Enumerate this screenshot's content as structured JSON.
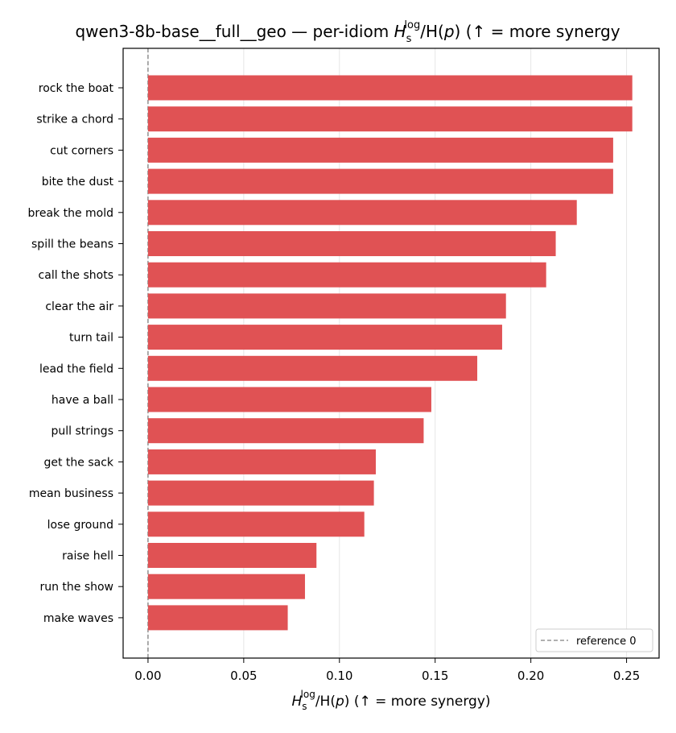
{
  "chart_data": {
    "type": "bar",
    "orientation": "horizontal",
    "title": {
      "prefix": "qwen3-8b-base__full__geo — per-idiom ",
      "h": "H",
      "h_sub": "s",
      "h_sup": "log",
      "ratio": "/H(",
      "p": "p",
      "close": ")",
      "suffix": "  (↑ = more synergy"
    },
    "xlabel": {
      "h": "H",
      "h_sub": "s",
      "h_sup": "log",
      "ratio": "/H(",
      "p": "p",
      "close": ")",
      "suffix": "  (↑ = more synergy)"
    },
    "categories": [
      "rock the boat",
      "strike a chord",
      "cut corners",
      "bite the dust",
      "break the mold",
      "spill the beans",
      "call the shots",
      "clear the air",
      "turn tail",
      "lead the field",
      "have a ball",
      "pull strings",
      "get the sack",
      "mean business",
      "lose ground",
      "raise hell",
      "run the show",
      "make waves"
    ],
    "values": [
      0.253,
      0.253,
      0.243,
      0.243,
      0.224,
      0.213,
      0.208,
      0.187,
      0.185,
      0.172,
      0.148,
      0.144,
      0.119,
      0.118,
      0.113,
      0.088,
      0.082,
      0.073
    ],
    "x_ticks": [
      "0.00",
      "0.05",
      "0.10",
      "0.15",
      "0.20",
      "0.25"
    ],
    "xlim": [
      -0.013,
      0.267
    ],
    "reference_line": {
      "value": 0,
      "label": "reference 0"
    },
    "grid": "vertical",
    "legend_position": "lower-right",
    "colors": {
      "bar": "#e05254",
      "grid": "#e6e6e6",
      "reference": "#808080"
    }
  }
}
